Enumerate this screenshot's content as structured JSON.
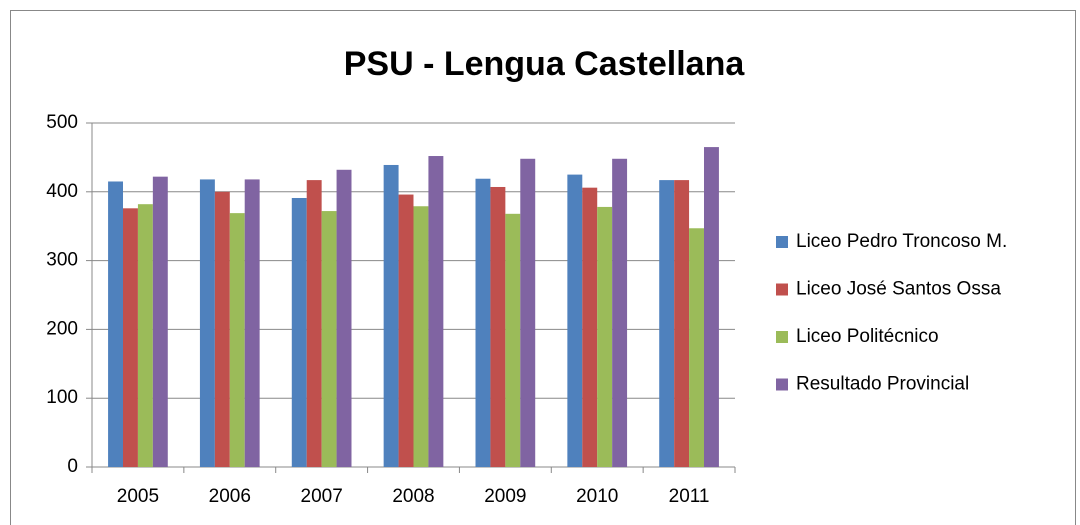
{
  "chart_data": {
    "type": "bar",
    "title": "PSU - Lengua Castellana",
    "categories": [
      "2005",
      "2006",
      "2007",
      "2008",
      "2009",
      "2010",
      "2011"
    ],
    "series": [
      {
        "name": "Liceo Pedro Troncoso M.",
        "color": "#4f81bd",
        "values": [
          415,
          418,
          391,
          439,
          419,
          425,
          417
        ]
      },
      {
        "name": "Liceo José Santos Ossa",
        "color": "#c0504d",
        "values": [
          376,
          400,
          417,
          396,
          407,
          406,
          417
        ]
      },
      {
        "name": "Liceo Politécnico",
        "color": "#9bbb59",
        "values": [
          382,
          369,
          372,
          379,
          368,
          378,
          347
        ]
      },
      {
        "name": "Resultado Provincial",
        "color": "#8064a2",
        "values": [
          422,
          418,
          432,
          452,
          448,
          448,
          465
        ]
      }
    ],
    "ylim": [
      0,
      500
    ],
    "yticks": [
      0,
      100,
      200,
      300,
      400,
      500
    ],
    "grid": true,
    "legend": "right"
  }
}
